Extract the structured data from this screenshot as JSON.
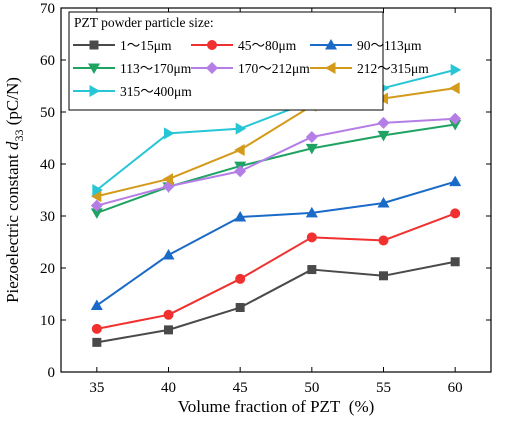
{
  "chart_data": {
    "type": "line",
    "x": [
      35,
      40,
      45,
      50,
      55,
      60
    ],
    "xlabel": "Volume fraction of PZT  (%)",
    "ylabel_prefix": "Piezoelectric constant ",
    "ylabel_symbol": "d",
    "ylabel_sub": "33",
    "ylabel_suffix": " (pC/N)",
    "xlim": [
      32.5,
      62.5
    ],
    "ylim": [
      0,
      70
    ],
    "xticks": [
      35,
      40,
      45,
      50,
      55,
      60
    ],
    "yticks": [
      0,
      10,
      20,
      30,
      40,
      50,
      60,
      70
    ],
    "legend_title": "PZT powder particle size:",
    "legend_placement": "top-left",
    "grid": false,
    "series": [
      {
        "name": "1～15μm",
        "color": "#4a4a4a",
        "marker": "square",
        "values": [
          5.7,
          8.1,
          12.4,
          19.7,
          18.5,
          21.2
        ]
      },
      {
        "name": "45～80μm",
        "color": "#f0312f",
        "marker": "circle",
        "values": [
          8.3,
          11.0,
          17.9,
          25.9,
          25.3,
          30.5
        ]
      },
      {
        "name": "90～113μm",
        "color": "#1a6ac8",
        "marker": "triangle-up",
        "values": [
          12.8,
          22.5,
          29.8,
          30.6,
          32.5,
          36.6
        ]
      },
      {
        "name": "113～170μm",
        "color": "#1fa363",
        "marker": "triangle-down",
        "values": [
          30.6,
          35.6,
          39.6,
          43.0,
          45.5,
          47.6
        ]
      },
      {
        "name": "170～212μm",
        "color": "#b57ee6",
        "marker": "diamond",
        "values": [
          32.0,
          35.7,
          38.6,
          45.2,
          47.9,
          48.7
        ]
      },
      {
        "name": "212～315μm",
        "color": "#d49a19",
        "marker": "triangle-left",
        "values": [
          33.8,
          37.1,
          42.7,
          51.2,
          52.6,
          54.6
        ]
      },
      {
        "name": "315～400μm",
        "color": "#26c6d6",
        "marker": "triangle-right",
        "values": [
          35.0,
          45.9,
          46.8,
          52.1,
          54.6,
          58.1
        ]
      }
    ]
  }
}
